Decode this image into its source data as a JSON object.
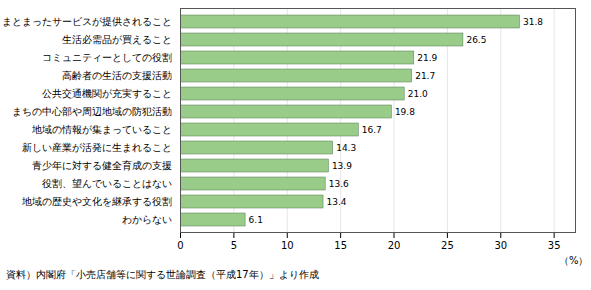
{
  "chart_data": {
    "type": "bar",
    "orientation": "horizontal",
    "categories": [
      "まとまったサービスが提供されること",
      "生活必需品が買えること",
      "コミュニティーとしての役割",
      "高齢者の生活の支援活動",
      "公共交通機関が充実すること",
      "まちの中心部や周辺地域の防犯活動",
      "地域の情報が集まっていること",
      "新しい産業が活発に生まれること",
      "青少年に対する健全育成の支援",
      "役割、望んでいることはない",
      "地域の歴史や文化を継承する役割",
      "わからない"
    ],
    "values": [
      31.8,
      26.5,
      21.9,
      21.7,
      21.0,
      19.8,
      16.7,
      14.3,
      13.9,
      13.6,
      13.4,
      6.1
    ],
    "value_labels": [
      "31.8",
      "26.5",
      "21.9",
      "21.7",
      "21.0",
      "19.8",
      "16.7",
      "14.3",
      "13.9",
      "13.6",
      "13.4",
      "6.1"
    ],
    "data_labels": true,
    "color": "#99cc88",
    "xlabel": "（%）",
    "xlim": [
      0,
      37
    ],
    "xticks": [
      0,
      5,
      10,
      15,
      20,
      25,
      30,
      35
    ],
    "grid": true,
    "footnote": "資料）内閣府「小売店舗等に関する世論調査（平成17年）」より作成"
  }
}
